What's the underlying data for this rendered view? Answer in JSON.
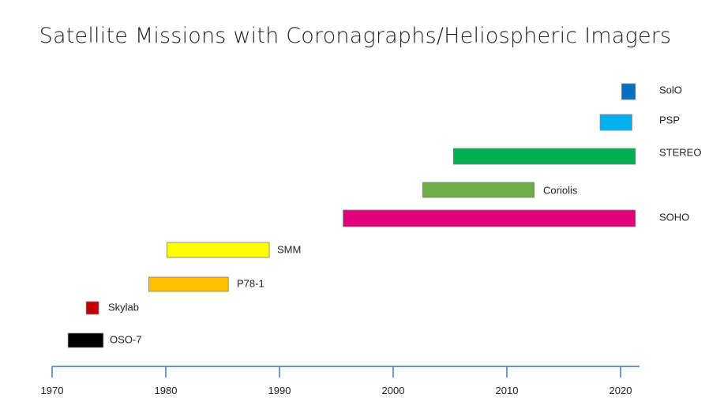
{
  "chart_data": {
    "type": "bar",
    "orientation": "horizontal-range",
    "title": "Satellite Missions with Coronagraphs/Heliospheric Imagers",
    "xlabel": "",
    "ylabel": "",
    "xlim": [
      1970,
      2021.5
    ],
    "x_ticks": [
      "1970",
      "1980",
      "1990",
      "2000",
      "2010",
      "2020"
    ],
    "grid": false,
    "missions": [
      {
        "name": "OSO-7",
        "start": 1971.4,
        "end": 1974.5,
        "color": "#000000"
      },
      {
        "name": "Skylab",
        "start": 1973.0,
        "end": 1974.1,
        "color": "#c00000"
      },
      {
        "name": "P78-1",
        "start": 1978.5,
        "end": 1985.5,
        "color": "#ffc000"
      },
      {
        "name": "SMM",
        "start": 1980.1,
        "end": 1989.1,
        "color": "#ffff00"
      },
      {
        "name": "SOHO",
        "start": 1995.6,
        "end": 2021.3,
        "color": "#e2007a"
      },
      {
        "name": "Coriolis",
        "start": 2002.6,
        "end": 2012.4,
        "color": "#70ad47"
      },
      {
        "name": "STEREO",
        "start": 2005.3,
        "end": 2021.3,
        "color": "#00b050"
      },
      {
        "name": "PSP",
        "start": 2018.2,
        "end": 2021.0,
        "color": "#00b0f0"
      },
      {
        "name": "SolO",
        "start": 2020.1,
        "end": 2021.3,
        "color": "#0070c0"
      }
    ]
  }
}
